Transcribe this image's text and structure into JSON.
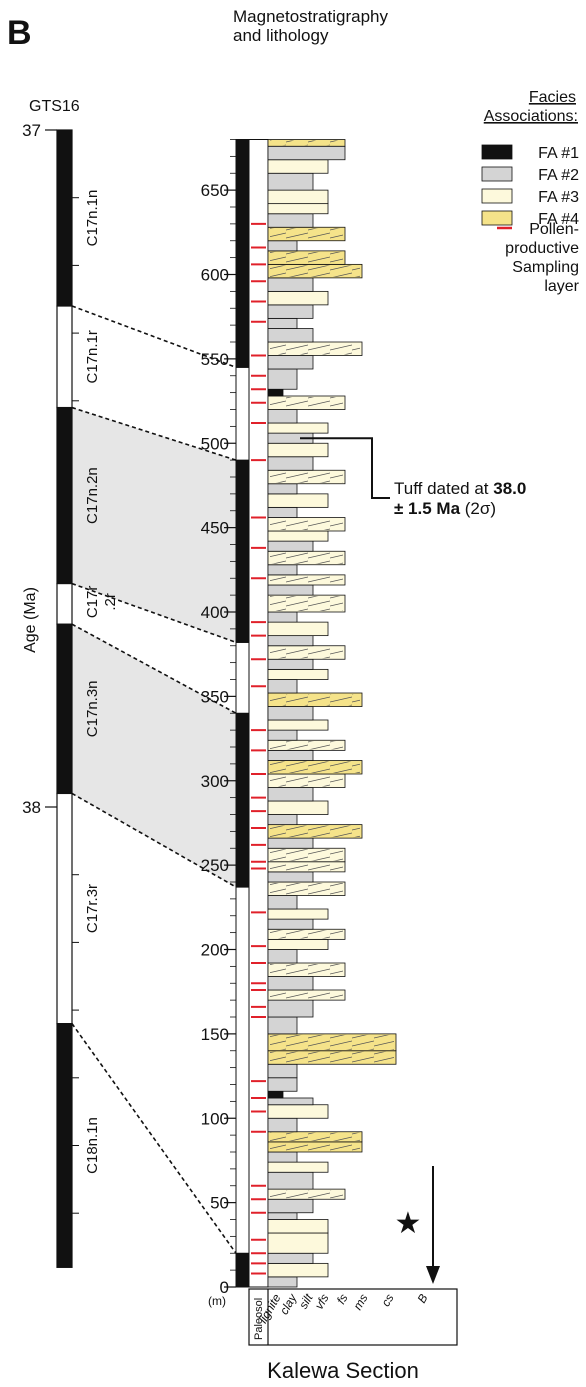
{
  "panel_label": "B",
  "column_title_line1": "Magnetostratigraphy",
  "column_title_line2": "and lithology",
  "timescale_label": "GTS16",
  "age_axis_label": "Age (Ma)",
  "age_ticks": [
    {
      "value": "37",
      "age": 37.0
    },
    {
      "value": "38",
      "age": 38.0
    }
  ],
  "chrons": [
    {
      "name": "C17n.1n",
      "polarity": "normal",
      "top_age": 37.0,
      "bottom_age": 37.26
    },
    {
      "name": "C17n.1r",
      "polarity": "reverse",
      "top_age": 37.26,
      "bottom_age": 37.41
    },
    {
      "name": "C17n.2n",
      "polarity": "normal",
      "top_age": 37.41,
      "bottom_age": 37.67
    },
    {
      "name": "C17r",
      "name2": ".2r",
      "polarity": "reverse",
      "top_age": 37.67,
      "bottom_age": 37.73
    },
    {
      "name": "C17n.3n",
      "polarity": "normal",
      "top_age": 37.73,
      "bottom_age": 37.98
    },
    {
      "name": "C17r.3r",
      "polarity": "reverse",
      "top_age": 37.98,
      "bottom_age": 38.32
    },
    {
      "name": "C18n.1n",
      "polarity": "normal",
      "top_age": 38.32,
      "bottom_age": 38.68
    }
  ],
  "depth_axis": {
    "unit": "(m)",
    "range": [
      0,
      680
    ],
    "ticks": [
      0,
      50,
      100,
      150,
      200,
      250,
      300,
      350,
      400,
      450,
      500,
      550,
      600,
      650
    ]
  },
  "polarity_zones_m": [
    {
      "polarity": "normal",
      "from": 0,
      "to": 20
    },
    {
      "polarity": "reverse",
      "from": 20,
      "to": 237
    },
    {
      "polarity": "normal",
      "from": 237,
      "to": 340
    },
    {
      "polarity": "reverse",
      "from": 340,
      "to": 382
    },
    {
      "polarity": "normal",
      "from": 382,
      "to": 490
    },
    {
      "polarity": "reverse",
      "from": 490,
      "to": 545
    },
    {
      "polarity": "normal",
      "from": 545,
      "to": 680
    }
  ],
  "correlations": [
    {
      "depth_m": 545,
      "age": 37.26
    },
    {
      "depth_m": 490,
      "age": 37.41
    },
    {
      "depth_m": 382,
      "age": 37.67
    },
    {
      "depth_m": 340,
      "age": 37.73
    },
    {
      "depth_m": 237,
      "age": 37.98
    },
    {
      "depth_m": 20,
      "age": 38.32
    }
  ],
  "shaded_correlations": [
    {
      "depth_top": 490,
      "depth_bottom": 382,
      "age_top": 37.41,
      "age_bottom": 37.67
    },
    {
      "depth_top": 340,
      "depth_bottom": 237,
      "age_top": 37.73,
      "age_bottom": 37.98
    }
  ],
  "legend": {
    "title_line1": "Facies",
    "title_line2": "Associations:",
    "items": [
      {
        "label": "FA #1",
        "color": "#111111"
      },
      {
        "label": "FA #2",
        "color": "#d4d4d4"
      },
      {
        "label": "FA #3",
        "color": "#fdf9dc"
      },
      {
        "label": "FA #4",
        "color": "#f5e38a"
      }
    ],
    "pollen_line1": "Pollen-",
    "pollen_line2": "productive",
    "pollen_line3": "Sampling",
    "pollen_line4": "layer",
    "pollen_color": "#e0202a"
  },
  "tuff": {
    "depth_m": 503,
    "line1_prefix": "Tuff dated at ",
    "line1_bold": "38.0",
    "line2_bold": "± 1.5 Ma",
    "line2_suffix": " (2σ)"
  },
  "grain_size_labels": [
    "lignite",
    "clay",
    "silt",
    "vfs",
    "fs",
    "ms",
    "cs",
    "B"
  ],
  "paleosol_label": "Paleosol",
  "section_name": "Kalewa Section",
  "facies_colors": {
    "FA1": "#111111",
    "FA2": "#d4d4d4",
    "FA3": "#fdf9dc",
    "FA4": "#f5e38a"
  },
  "beds": [
    {
      "from": 0,
      "to": 6,
      "facies": "FA2",
      "grain": 2
    },
    {
      "from": 6,
      "to": 14,
      "facies": "FA3",
      "grain": 4
    },
    {
      "from": 14,
      "to": 20,
      "facies": "FA2",
      "grain": 3
    },
    {
      "from": 20,
      "to": 32,
      "facies": "FA3",
      "grain": 4
    },
    {
      "from": 32,
      "to": 40,
      "facies": "FA3",
      "grain": 4
    },
    {
      "from": 40,
      "to": 44,
      "facies": "FA2",
      "grain": 2
    },
    {
      "from": 44,
      "to": 52,
      "facies": "FA2",
      "grain": 3
    },
    {
      "from": 52,
      "to": 58,
      "facies": "FA3",
      "grain": 5
    },
    {
      "from": 58,
      "to": 68,
      "facies": "FA2",
      "grain": 3
    },
    {
      "from": 68,
      "to": 74,
      "facies": "FA3",
      "grain": 4
    },
    {
      "from": 74,
      "to": 80,
      "facies": "FA2",
      "grain": 2
    },
    {
      "from": 80,
      "to": 86,
      "facies": "FA4",
      "grain": 6
    },
    {
      "from": 86,
      "to": 92,
      "facies": "FA4",
      "grain": 6
    },
    {
      "from": 92,
      "to": 100,
      "facies": "FA2",
      "grain": 2
    },
    {
      "from": 100,
      "to": 108,
      "facies": "FA3",
      "grain": 4
    },
    {
      "from": 108,
      "to": 112,
      "facies": "FA2",
      "grain": 3
    },
    {
      "from": 112,
      "to": 116,
      "facies": "FA1",
      "grain": 1
    },
    {
      "from": 116,
      "to": 124,
      "facies": "FA2",
      "grain": 2
    },
    {
      "from": 124,
      "to": 132,
      "facies": "FA2",
      "grain": 2
    },
    {
      "from": 132,
      "to": 140,
      "facies": "FA4",
      "grain": 7
    },
    {
      "from": 140,
      "to": 150,
      "facies": "FA4",
      "grain": 7
    },
    {
      "from": 150,
      "to": 160,
      "facies": "FA2",
      "grain": 2
    },
    {
      "from": 160,
      "to": 170,
      "facies": "FA2",
      "grain": 3
    },
    {
      "from": 170,
      "to": 176,
      "facies": "FA3",
      "grain": 5
    },
    {
      "from": 176,
      "to": 184,
      "facies": "FA2",
      "grain": 3
    },
    {
      "from": 184,
      "to": 192,
      "facies": "FA3",
      "grain": 5
    },
    {
      "from": 192,
      "to": 200,
      "facies": "FA2",
      "grain": 2
    },
    {
      "from": 200,
      "to": 206,
      "facies": "FA3",
      "grain": 4
    },
    {
      "from": 206,
      "to": 212,
      "facies": "FA3",
      "grain": 5
    },
    {
      "from": 212,
      "to": 218,
      "facies": "FA2",
      "grain": 3
    },
    {
      "from": 218,
      "to": 224,
      "facies": "FA3",
      "grain": 4
    },
    {
      "from": 224,
      "to": 232,
      "facies": "FA2",
      "grain": 2
    },
    {
      "from": 232,
      "to": 240,
      "facies": "FA3",
      "grain": 5
    },
    {
      "from": 240,
      "to": 246,
      "facies": "FA2",
      "grain": 3
    },
    {
      "from": 246,
      "to": 252,
      "facies": "FA3",
      "grain": 5
    },
    {
      "from": 252,
      "to": 260,
      "facies": "FA3",
      "grain": 5
    },
    {
      "from": 260,
      "to": 266,
      "facies": "FA2",
      "grain": 3
    },
    {
      "from": 266,
      "to": 274,
      "facies": "FA4",
      "grain": 6
    },
    {
      "from": 274,
      "to": 280,
      "facies": "FA2",
      "grain": 2
    },
    {
      "from": 280,
      "to": 288,
      "facies": "FA3",
      "grain": 4
    },
    {
      "from": 288,
      "to": 296,
      "facies": "FA2",
      "grain": 3
    },
    {
      "from": 296,
      "to": 304,
      "facies": "FA3",
      "grain": 5
    },
    {
      "from": 304,
      "to": 312,
      "facies": "FA4",
      "grain": 6
    },
    {
      "from": 312,
      "to": 318,
      "facies": "FA2",
      "grain": 3
    },
    {
      "from": 318,
      "to": 324,
      "facies": "FA3",
      "grain": 5
    },
    {
      "from": 324,
      "to": 330,
      "facies": "FA2",
      "grain": 2
    },
    {
      "from": 330,
      "to": 336,
      "facies": "FA3",
      "grain": 4
    },
    {
      "from": 336,
      "to": 344,
      "facies": "FA2",
      "grain": 3
    },
    {
      "from": 344,
      "to": 352,
      "facies": "FA4",
      "grain": 6
    },
    {
      "from": 352,
      "to": 360,
      "facies": "FA2",
      "grain": 2
    },
    {
      "from": 360,
      "to": 366,
      "facies": "FA3",
      "grain": 4
    },
    {
      "from": 366,
      "to": 372,
      "facies": "FA2",
      "grain": 3
    },
    {
      "from": 372,
      "to": 380,
      "facies": "FA3",
      "grain": 5
    },
    {
      "from": 380,
      "to": 386,
      "facies": "FA2",
      "grain": 3
    },
    {
      "from": 386,
      "to": 394,
      "facies": "FA3",
      "grain": 4
    },
    {
      "from": 394,
      "to": 400,
      "facies": "FA2",
      "grain": 2
    },
    {
      "from": 400,
      "to": 410,
      "facies": "FA3",
      "grain": 5
    },
    {
      "from": 410,
      "to": 416,
      "facies": "FA2",
      "grain": 3
    },
    {
      "from": 416,
      "to": 422,
      "facies": "FA3",
      "grain": 5
    },
    {
      "from": 422,
      "to": 428,
      "facies": "FA2",
      "grain": 2
    },
    {
      "from": 428,
      "to": 436,
      "facies": "FA3",
      "grain": 5
    },
    {
      "from": 436,
      "to": 442,
      "facies": "FA2",
      "grain": 3
    },
    {
      "from": 442,
      "to": 448,
      "facies": "FA3",
      "grain": 4
    },
    {
      "from": 448,
      "to": 456,
      "facies": "FA3",
      "grain": 5
    },
    {
      "from": 456,
      "to": 462,
      "facies": "FA2",
      "grain": 2
    },
    {
      "from": 462,
      "to": 470,
      "facies": "FA3",
      "grain": 4
    },
    {
      "from": 470,
      "to": 476,
      "facies": "FA2",
      "grain": 2
    },
    {
      "from": 476,
      "to": 484,
      "facies": "FA3",
      "grain": 5
    },
    {
      "from": 484,
      "to": 492,
      "facies": "FA2",
      "grain": 3
    },
    {
      "from": 492,
      "to": 500,
      "facies": "FA3",
      "grain": 4
    },
    {
      "from": 500,
      "to": 506,
      "facies": "FA2",
      "grain": 3
    },
    {
      "from": 506,
      "to": 512,
      "facies": "FA3",
      "grain": 4
    },
    {
      "from": 512,
      "to": 520,
      "facies": "FA2",
      "grain": 2
    },
    {
      "from": 520,
      "to": 528,
      "facies": "FA3",
      "grain": 5
    },
    {
      "from": 528,
      "to": 532,
      "facies": "FA1",
      "grain": 1
    },
    {
      "from": 532,
      "to": 544,
      "facies": "FA2",
      "grain": 2
    },
    {
      "from": 544,
      "to": 552,
      "facies": "FA2",
      "grain": 3
    },
    {
      "from": 552,
      "to": 560,
      "facies": "FA3",
      "grain": 6
    },
    {
      "from": 560,
      "to": 568,
      "facies": "FA2",
      "grain": 3
    },
    {
      "from": 568,
      "to": 574,
      "facies": "FA2",
      "grain": 2
    },
    {
      "from": 574,
      "to": 582,
      "facies": "FA2",
      "grain": 3
    },
    {
      "from": 582,
      "to": 590,
      "facies": "FA3",
      "grain": 4
    },
    {
      "from": 590,
      "to": 598,
      "facies": "FA2",
      "grain": 3
    },
    {
      "from": 598,
      "to": 606,
      "facies": "FA4",
      "grain": 6
    },
    {
      "from": 606,
      "to": 614,
      "facies": "FA4",
      "grain": 5
    },
    {
      "from": 614,
      "to": 620,
      "facies": "FA2",
      "grain": 2
    },
    {
      "from": 620,
      "to": 628,
      "facies": "FA4",
      "grain": 5
    },
    {
      "from": 628,
      "to": 636,
      "facies": "FA2",
      "grain": 3
    },
    {
      "from": 636,
      "to": 642,
      "facies": "FA3",
      "grain": 4
    },
    {
      "from": 642,
      "to": 650,
      "facies": "FA3",
      "grain": 4
    },
    {
      "from": 650,
      "to": 660,
      "facies": "FA2",
      "grain": 3
    },
    {
      "from": 660,
      "to": 668,
      "facies": "FA3",
      "grain": 4
    },
    {
      "from": 668,
      "to": 676,
      "facies": "FA2",
      "grain": 5
    },
    {
      "from": 676,
      "to": 680,
      "facies": "FA4",
      "grain": 5
    }
  ],
  "pollen_samples_m": [
    8,
    14,
    20,
    28,
    44,
    52,
    60,
    92,
    104,
    112,
    122,
    160,
    166,
    176,
    180,
    192,
    202,
    222,
    248,
    252,
    262,
    272,
    282,
    290,
    304,
    318,
    330,
    356,
    372,
    386,
    394,
    420,
    438,
    456,
    490,
    512,
    524,
    532,
    540,
    552,
    572,
    584,
    596,
    606,
    616,
    630
  ]
}
